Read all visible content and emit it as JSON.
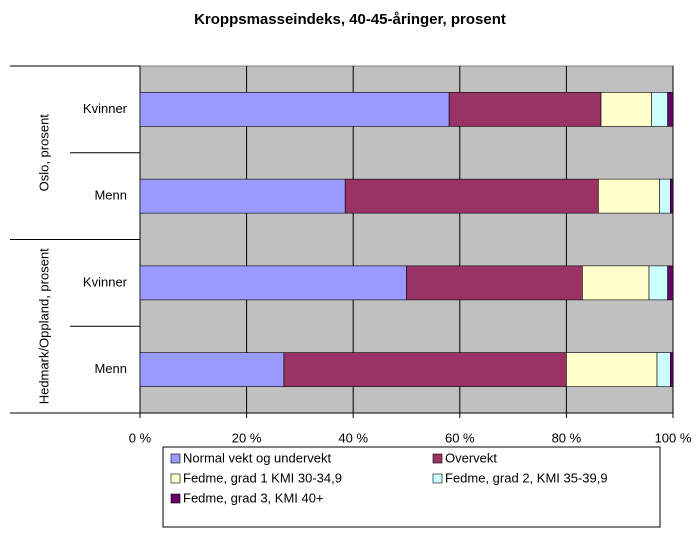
{
  "chart_data": {
    "type": "bar",
    "orientation": "horizontal",
    "stacked": true,
    "title": "Kroppsmasseindeks, 40-45-åringer, prosent",
    "groups": [
      "Oslo, prosent",
      "Hedmark/Oppland, prosent"
    ],
    "categories": [
      "Kvinner",
      "Menn",
      "Kvinner",
      "Menn"
    ],
    "series": [
      {
        "name": "Normal vekt og undervekt",
        "color": "#9999ff",
        "values": [
          58,
          38.5,
          50,
          27
        ]
      },
      {
        "name": "Overvekt",
        "color": "#993366",
        "values": [
          28.5,
          47.5,
          33,
          53
        ]
      },
      {
        "name": "Fedme, grad 1 KMI 30-34,9",
        "color": "#ffffcc",
        "values": [
          9.5,
          11.5,
          12.5,
          17
        ]
      },
      {
        "name": "Fedme, grad 2, KMI 35-39,9",
        "color": "#ccffff",
        "values": [
          3,
          2,
          3.5,
          2.5
        ]
      },
      {
        "name": "Fedme, grad 3, KMI 40+",
        "color": "#660066",
        "values": [
          1,
          0.5,
          1,
          0.5
        ]
      }
    ],
    "xlim": [
      0,
      100
    ],
    "xticks": [
      {
        "value": 0,
        "label": "0 %"
      },
      {
        "value": 20,
        "label": "20 %"
      },
      {
        "value": 40,
        "label": "40 %"
      },
      {
        "value": 60,
        "label": "60 %"
      },
      {
        "value": 80,
        "label": "80 %"
      },
      {
        "value": 100,
        "label": "100 %"
      }
    ],
    "grid": true,
    "legend": "bottom"
  }
}
